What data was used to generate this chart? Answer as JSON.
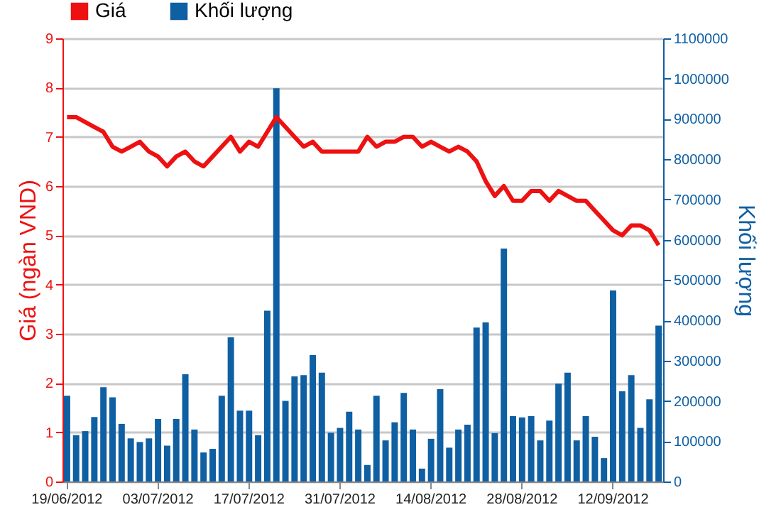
{
  "chart_data": {
    "type": "bar",
    "title": null,
    "categories": [
      "19/06/2012",
      null,
      null,
      null,
      null,
      null,
      null,
      null,
      null,
      null,
      "03/07/2012",
      null,
      null,
      null,
      null,
      null,
      null,
      null,
      null,
      null,
      "17/07/2012",
      null,
      null,
      null,
      null,
      null,
      null,
      null,
      null,
      null,
      "31/07/2012",
      null,
      null,
      null,
      null,
      null,
      null,
      null,
      null,
      null,
      "14/08/2012",
      null,
      null,
      null,
      null,
      null,
      null,
      null,
      null,
      null,
      "28/08/2012",
      null,
      null,
      null,
      null,
      null,
      null,
      null,
      null,
      null,
      "12/09/2012",
      null,
      null,
      null,
      null,
      null
    ],
    "series": [
      {
        "name": "Khối lượng",
        "axis": "y2",
        "color": "#0f5fa3",
        "values": [
          213000,
          115000,
          125000,
          160000,
          234000,
          209000,
          143000,
          107000,
          98000,
          107000,
          155000,
          89000,
          155000,
          266000,
          129000,
          72000,
          81000,
          213000,
          358000,
          176000,
          176000,
          115000,
          424000,
          976000,
          200000,
          261000,
          264000,
          314000,
          270000,
          121000,
          133000,
          173000,
          129000,
          41000,
          213000,
          102000,
          147000,
          220000,
          129000,
          32000,
          106000,
          229000,
          84000,
          129000,
          141000,
          382000,
          395000,
          120000,
          578000,
          162000,
          159000,
          162000,
          102000,
          151000,
          243000,
          270000,
          102000,
          162000,
          111000,
          58000,
          474000,
          224000,
          264000,
          133000,
          204000,
          387000
        ]
      },
      {
        "name": "Giá",
        "type": "line",
        "color": "#ee1111",
        "values": [
          7.4,
          7.4,
          7.3,
          7.2,
          7.1,
          6.8,
          6.7,
          6.8,
          6.9,
          6.7,
          6.6,
          6.4,
          6.6,
          6.7,
          6.5,
          6.4,
          6.6,
          6.8,
          7.0,
          6.7,
          6.9,
          6.8,
          7.1,
          7.4,
          7.2,
          7.0,
          6.8,
          6.9,
          6.7,
          6.7,
          6.7,
          6.7,
          6.7,
          7.0,
          6.8,
          6.9,
          6.9,
          7.0,
          7.0,
          6.8,
          6.9,
          6.8,
          6.7,
          6.8,
          6.7,
          6.5,
          6.1,
          5.8,
          6.0,
          5.7,
          5.7,
          5.9,
          5.9,
          5.7,
          5.9,
          5.8,
          5.7,
          5.7,
          5.5,
          5.3,
          5.1,
          5.0,
          5.2,
          5.2,
          5.1,
          4.8
        ]
      }
    ],
    "ylabel": "Giá (ngàn VND)",
    "y2label": "Khối lượng",
    "ylim": [
      0,
      9
    ],
    "yticks": [
      0,
      1,
      2,
      3,
      4,
      5,
      6,
      7,
      8,
      9
    ],
    "y2lim": [
      0,
      1100000
    ],
    "y2ticks": [
      0,
      100000,
      200000,
      300000,
      400000,
      500000,
      600000,
      700000,
      800000,
      900000,
      1000000,
      1100000
    ],
    "grid": "y",
    "legend": "top left"
  }
}
